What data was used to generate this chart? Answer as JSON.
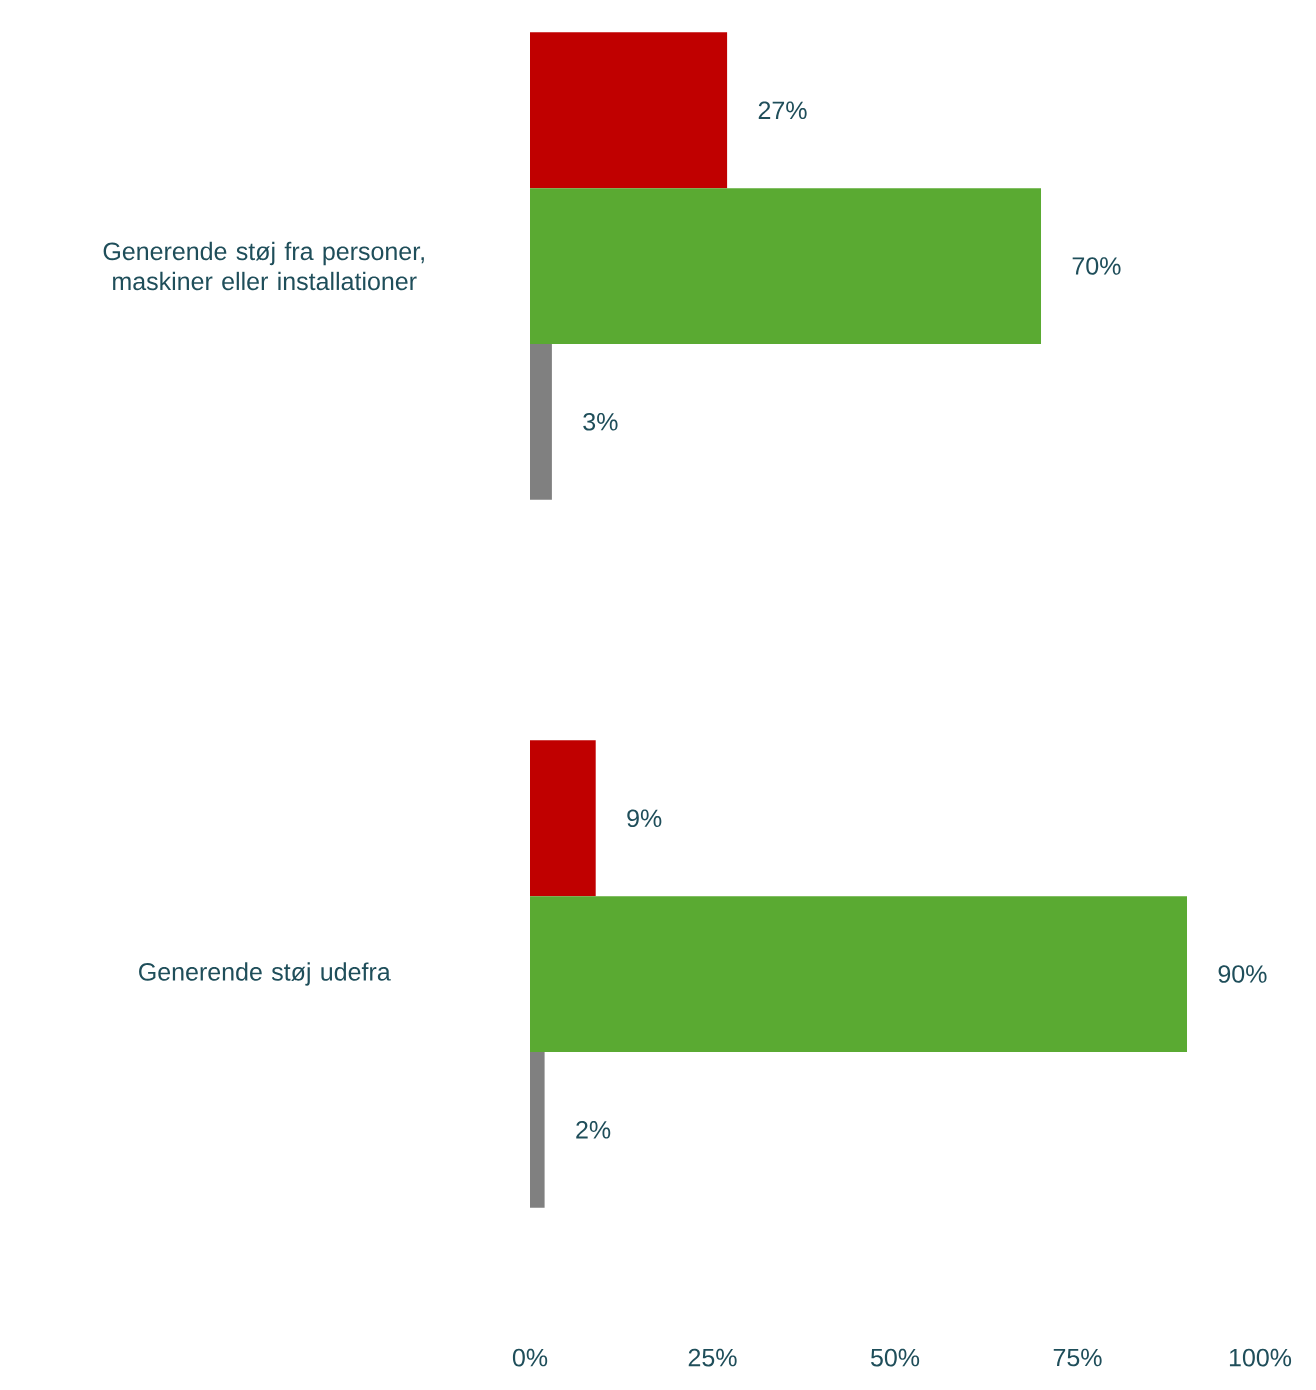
{
  "chart_data": {
    "type": "bar",
    "orientation": "horizontal",
    "categories": [
      "Generende støj fra personer, maskiner eller installationer",
      "Generende støj udefra"
    ],
    "series": [
      {
        "color": "#c00000",
        "values": [
          27,
          9
        ],
        "value_labels": [
          "27%",
          "9%"
        ]
      },
      {
        "color": "#5aaa32",
        "values": [
          70,
          90
        ],
        "value_labels": [
          "70%",
          "90%"
        ]
      },
      {
        "color": "#808080",
        "values": [
          3,
          2
        ],
        "value_labels": [
          "3%",
          "2%"
        ]
      }
    ],
    "xlim": [
      0,
      100
    ],
    "xticks": [
      {
        "value": 0,
        "label": "0%"
      },
      {
        "value": 25,
        "label": "25%"
      },
      {
        "value": 50,
        "label": "50%"
      },
      {
        "value": 75,
        "label": "75%"
      },
      {
        "value": 100,
        "label": "100%"
      }
    ]
  }
}
